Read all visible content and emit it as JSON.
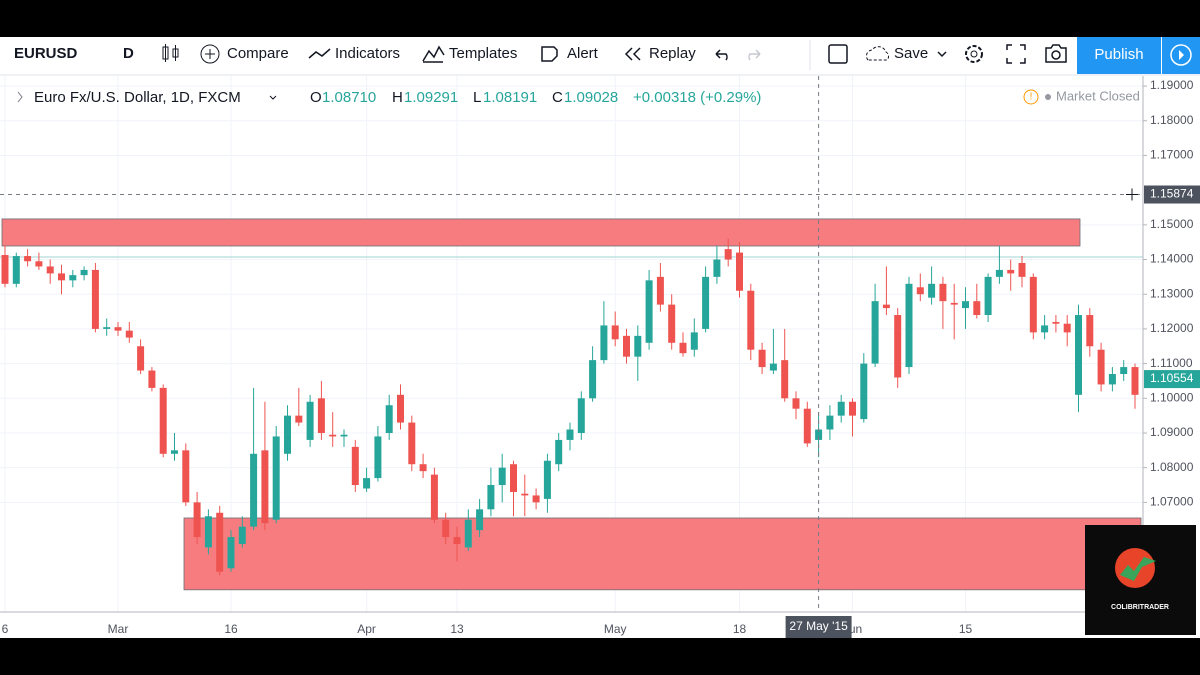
{
  "toolbar": {
    "symbol": "EURUSD",
    "interval": "D",
    "compare": "Compare",
    "indicators": "Indicators",
    "templates": "Templates",
    "alert": "Alert",
    "replay": "Replay",
    "save": "Save",
    "publish": "Publish"
  },
  "legend": {
    "name": "Euro Fx/U.S. Dollar, 1D, FXCM",
    "o_label": "O",
    "o": "1.08710",
    "h_label": "H",
    "h": "1.09291",
    "l_label": "L",
    "l": "1.08191",
    "c_label": "C",
    "c": "1.09028",
    "change": "+0.00318 (+0.29%)",
    "status": "Market Closed"
  },
  "logo": "COLIBRITRADER",
  "chart_data": {
    "type": "candlestick",
    "categories": [
      "6",
      null,
      null,
      null,
      null,
      null,
      null,
      null,
      null,
      null,
      "Mar",
      null,
      null,
      null,
      null,
      null,
      null,
      null,
      null,
      null,
      "16",
      null,
      null,
      null,
      null,
      null,
      null,
      null,
      null,
      null,
      null,
      null,
      "Apr",
      null,
      null,
      null,
      null,
      null,
      null,
      null,
      "13",
      null,
      null,
      null,
      null,
      null,
      null,
      null,
      null,
      null,
      null,
      null,
      null,
      null,
      "May",
      null,
      null,
      null,
      null,
      null,
      null,
      null,
      null,
      null,
      null,
      "18",
      null,
      null,
      null,
      null,
      null,
      null,
      null,
      null,
      null,
      "Jun",
      null,
      null,
      null,
      null,
      null,
      null,
      null,
      null,
      null,
      "15",
      null,
      null,
      null,
      null,
      null,
      null,
      null,
      null,
      null,
      null,
      null,
      null,
      null,
      null,
      null
    ],
    "open": [
      1.1413,
      1.133,
      1.141,
      1.1395,
      1.138,
      1.136,
      1.134,
      1.1355,
      1.137,
      1.12,
      1.1205,
      1.1195,
      1.115,
      1.108,
      1.103,
      1.084,
      1.085,
      1.07,
      1.057,
      1.067,
      1.051,
      1.058,
      1.063,
      1.085,
      1.065,
      1.084,
      1.095,
      1.088,
      1.1,
      1.0895,
      1.089,
      1.086,
      1.074,
      1.077,
      1.09,
      1.101,
      1.093,
      1.081,
      1.078,
      1.065,
      1.06,
      1.057,
      1.062,
      1.068,
      1.075,
      1.081,
      1.0725,
      1.072,
      1.071,
      1.081,
      1.088,
      1.09,
      1.1,
      1.111,
      1.121,
      1.118,
      1.112,
      1.116,
      1.135,
      1.127,
      1.116,
      1.114,
      1.12,
      1.135,
      1.143,
      1.142,
      1.131,
      1.114,
      1.108,
      1.111,
      1.1,
      1.097,
      1.088,
      1.091,
      1.095,
      1.099,
      1.094,
      1.11,
      1.127,
      1.124,
      1.109,
      1.132,
      1.129,
      1.133,
      1.1275,
      1.126,
      1.128,
      1.124,
      1.135,
      1.137,
      1.139,
      1.135,
      1.119,
      1.122,
      1.1215,
      1.101,
      1.124,
      1.114,
      1.104,
      1.107,
      1.109
    ],
    "high": [
      1.144,
      1.142,
      1.143,
      1.142,
      1.14,
      1.1385,
      1.137,
      1.138,
      1.139,
      1.123,
      1.122,
      1.122,
      1.117,
      1.109,
      1.104,
      1.09,
      1.087,
      1.073,
      1.068,
      1.069,
      1.062,
      1.066,
      1.103,
      1.099,
      1.092,
      1.098,
      1.103,
      1.101,
      1.105,
      1.096,
      1.091,
      1.088,
      1.08,
      1.092,
      1.101,
      1.104,
      1.095,
      1.084,
      1.08,
      1.067,
      1.063,
      1.068,
      1.071,
      1.08,
      1.084,
      1.082,
      1.078,
      1.074,
      1.084,
      1.09,
      1.093,
      1.102,
      1.115,
      1.128,
      1.125,
      1.12,
      1.121,
      1.137,
      1.139,
      1.13,
      1.119,
      1.123,
      1.138,
      1.144,
      1.146,
      1.145,
      1.133,
      1.116,
      1.12,
      1.12,
      1.102,
      1.099,
      1.096,
      1.098,
      1.101,
      1.1,
      1.113,
      1.133,
      1.138,
      1.126,
      1.135,
      1.136,
      1.138,
      1.135,
      1.133,
      1.132,
      1.133,
      1.136,
      1.144,
      1.14,
      1.141,
      1.136,
      1.124,
      1.124,
      1.124,
      1.127,
      1.126,
      1.116,
      1.109,
      1.111,
      1.11
    ],
    "low": [
      1.132,
      1.132,
      1.138,
      1.137,
      1.133,
      1.13,
      1.132,
      1.134,
      1.119,
      1.118,
      1.118,
      1.116,
      1.107,
      1.102,
      1.083,
      1.082,
      1.069,
      1.058,
      1.055,
      1.049,
      1.05,
      1.057,
      1.062,
      1.062,
      1.064,
      1.082,
      1.092,
      1.086,
      1.088,
      1.086,
      1.086,
      1.073,
      1.073,
      1.076,
      1.088,
      1.091,
      1.079,
      1.077,
      1.064,
      1.058,
      1.053,
      1.056,
      1.06,
      1.066,
      1.07,
      1.066,
      1.066,
      1.068,
      1.067,
      1.079,
      1.085,
      1.088,
      1.099,
      1.11,
      1.115,
      1.11,
      1.105,
      1.114,
      1.125,
      1.114,
      1.112,
      1.112,
      1.119,
      1.133,
      1.138,
      1.129,
      1.111,
      1.107,
      1.107,
      1.099,
      1.094,
      1.086,
      1.083,
      1.088,
      1.093,
      1.089,
      1.093,
      1.109,
      1.124,
      1.103,
      1.107,
      1.128,
      1.127,
      1.12,
      1.117,
      1.12,
      1.123,
      1.122,
      1.133,
      1.131,
      1.132,
      1.117,
      1.117,
      1.119,
      1.115,
      1.096,
      1.112,
      1.102,
      1.102,
      1.105,
      1.097
    ],
    "close": [
      1.133,
      1.141,
      1.1395,
      1.138,
      1.136,
      1.134,
      1.1355,
      1.137,
      1.12,
      1.1205,
      1.1195,
      1.1175,
      1.108,
      1.103,
      1.084,
      1.085,
      1.07,
      1.06,
      1.066,
      1.05,
      1.06,
      1.063,
      1.084,
      1.064,
      1.089,
      1.095,
      1.093,
      1.099,
      1.09,
      1.089,
      1.0895,
      1.075,
      1.077,
      1.089,
      1.098,
      1.093,
      1.081,
      1.079,
      1.065,
      1.06,
      1.058,
      1.065,
      1.068,
      1.075,
      1.08,
      1.073,
      1.072,
      1.07,
      1.082,
      1.088,
      1.091,
      1.1,
      1.111,
      1.121,
      1.117,
      1.112,
      1.118,
      1.134,
      1.127,
      1.116,
      1.113,
      1.119,
      1.135,
      1.14,
      1.14,
      1.131,
      1.114,
      1.109,
      1.11,
      1.1,
      1.097,
      1.087,
      1.091,
      1.095,
      1.099,
      1.095,
      1.11,
      1.128,
      1.126,
      1.106,
      1.133,
      1.13,
      1.133,
      1.128,
      1.127,
      1.128,
      1.124,
      1.135,
      1.137,
      1.136,
      1.135,
      1.119,
      1.121,
      1.1215,
      1.119,
      1.124,
      1.115,
      1.104,
      1.107,
      1.109,
      1.101
    ],
    "up_color": "#26a69a",
    "down_color": "#ef5350",
    "ylim": [
      1.0384,
      1.1929
    ],
    "yticks": [
      {
        "value": 1.07,
        "label": "1.07000"
      },
      {
        "value": 1.08,
        "label": "1.08000"
      },
      {
        "value": 1.09,
        "label": "1.09000"
      },
      {
        "value": 1.1,
        "label": "1.10000"
      },
      {
        "value": 1.11,
        "label": "1.11000"
      },
      {
        "value": 1.12,
        "label": "1.12000"
      },
      {
        "value": 1.13,
        "label": "1.13000"
      },
      {
        "value": 1.14,
        "label": "1.14000"
      },
      {
        "value": 1.15,
        "label": "1.15000"
      },
      {
        "value": 1.17,
        "label": "1.17000"
      },
      {
        "value": 1.18,
        "label": "1.18000"
      },
      {
        "value": 1.19,
        "label": "1.19000"
      }
    ],
    "grid": true,
    "zones": [
      {
        "from": 1.1439,
        "to": 1.1517
      },
      {
        "from": 1.0448,
        "to": 1.0655
      }
    ],
    "zone_color": "#f77c80",
    "crosshair": {
      "price": {
        "value": 1.15874,
        "label": "1.15874"
      },
      "date": "27 May '15"
    },
    "last_price": {
      "value": 1.10554,
      "label": "1.10554"
    }
  }
}
